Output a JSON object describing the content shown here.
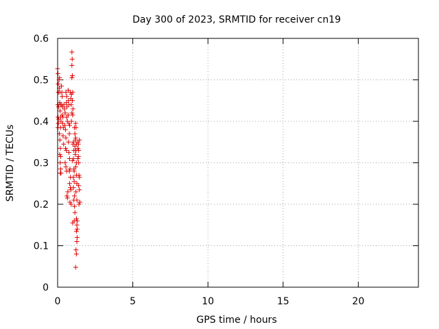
{
  "chart_data": {
    "type": "scatter",
    "title": "Day 300 of 2023, SRMTID for receiver cn19",
    "xlabel": "GPS time / hours",
    "ylabel": "SRMTID / TECUs",
    "xlim": [
      0,
      24
    ],
    "ylim": [
      0,
      0.6
    ],
    "xticks": [
      0,
      5,
      10,
      15,
      20
    ],
    "yticks": [
      0,
      0.1,
      0.2,
      0.3,
      0.4,
      0.5,
      0.6
    ],
    "xtick_labels": [
      "0",
      "5",
      "10",
      "15",
      "20"
    ],
    "ytick_labels": [
      "0",
      "0.1",
      "0.2",
      "0.3",
      "0.4",
      "0.5",
      "0.6"
    ],
    "grid": true,
    "marker": "+",
    "color": "#e00000",
    "series": [
      {
        "points": [
          [
            0.0,
            0.527
          ],
          [
            0.02,
            0.515
          ],
          [
            0.04,
            0.49
          ],
          [
            0.05,
            0.47
          ],
          [
            0.02,
            0.44
          ],
          [
            0.06,
            0.435
          ],
          [
            0.03,
            0.41
          ],
          [
            0.08,
            0.405
          ],
          [
            0.05,
            0.395
          ],
          [
            0.02,
            0.385
          ],
          [
            0.1,
            0.5
          ],
          [
            0.13,
            0.505
          ],
          [
            0.12,
            0.48
          ],
          [
            0.15,
            0.47
          ],
          [
            0.14,
            0.445
          ],
          [
            0.18,
            0.44
          ],
          [
            0.16,
            0.425
          ],
          [
            0.2,
            0.41
          ],
          [
            0.22,
            0.4
          ],
          [
            0.19,
            0.385
          ],
          [
            0.12,
            0.37
          ],
          [
            0.15,
            0.355
          ],
          [
            0.18,
            0.335
          ],
          [
            0.14,
            0.32
          ],
          [
            0.2,
            0.315
          ],
          [
            0.17,
            0.3
          ],
          [
            0.2,
            0.285
          ],
          [
            0.22,
            0.275
          ],
          [
            0.18,
            0.275
          ],
          [
            0.25,
            0.485
          ],
          [
            0.28,
            0.47
          ],
          [
            0.3,
            0.46
          ],
          [
            0.27,
            0.44
          ],
          [
            0.32,
            0.435
          ],
          [
            0.3,
            0.415
          ],
          [
            0.35,
            0.41
          ],
          [
            0.33,
            0.395
          ],
          [
            0.38,
            0.385
          ],
          [
            0.36,
            0.365
          ],
          [
            0.4,
            0.345
          ],
          [
            0.42,
            0.44
          ],
          [
            0.45,
            0.43
          ],
          [
            0.5,
            0.42
          ],
          [
            0.48,
            0.39
          ],
          [
            0.52,
            0.38
          ],
          [
            0.55,
            0.36
          ],
          [
            0.53,
            0.335
          ],
          [
            0.58,
            0.33
          ],
          [
            0.55,
            0.47
          ],
          [
            0.6,
            0.46
          ],
          [
            0.58,
            0.445
          ],
          [
            0.62,
            0.435
          ],
          [
            0.6,
            0.41
          ],
          [
            0.65,
            0.4
          ],
          [
            0.5,
            0.3
          ],
          [
            0.55,
            0.29
          ],
          [
            0.6,
            0.28
          ],
          [
            0.62,
            0.22
          ],
          [
            0.65,
            0.215
          ],
          [
            0.68,
            0.23
          ],
          [
            0.7,
            0.475
          ],
          [
            0.72,
            0.45
          ],
          [
            0.75,
            0.44
          ],
          [
            0.7,
            0.415
          ],
          [
            0.75,
            0.395
          ],
          [
            0.8,
            0.39
          ],
          [
            0.78,
            0.37
          ],
          [
            0.72,
            0.35
          ],
          [
            0.75,
            0.325
          ],
          [
            0.8,
            0.31
          ],
          [
            0.82,
            0.285
          ],
          [
            0.78,
            0.28
          ],
          [
            0.85,
            0.265
          ],
          [
            0.8,
            0.25
          ],
          [
            0.85,
            0.24
          ],
          [
            0.88,
            0.235
          ],
          [
            0.82,
            0.205
          ],
          [
            0.9,
            0.2
          ],
          [
            0.85,
            0.47
          ],
          [
            0.88,
            0.455
          ],
          [
            0.92,
            0.465
          ],
          [
            0.9,
            0.44
          ],
          [
            0.95,
            0.42
          ],
          [
            0.92,
            0.4
          ],
          [
            0.95,
            0.567
          ],
          [
            0.97,
            0.55
          ],
          [
            0.95,
            0.535
          ],
          [
            0.98,
            0.51
          ],
          [
            0.95,
            0.505
          ],
          [
            1.0,
            0.47
          ],
          [
            0.98,
            0.45
          ],
          [
            1.02,
            0.43
          ],
          [
            1.0,
            0.415
          ],
          [
            1.05,
            0.35
          ],
          [
            1.02,
            0.345
          ],
          [
            1.08,
            0.33
          ],
          [
            1.05,
            0.31
          ],
          [
            1.0,
            0.305
          ],
          [
            1.08,
            0.285
          ],
          [
            1.1,
            0.28
          ],
          [
            1.05,
            0.265
          ],
          [
            1.1,
            0.255
          ],
          [
            1.05,
            0.24
          ],
          [
            1.12,
            0.22
          ],
          [
            1.08,
            0.21
          ],
          [
            1.12,
            0.195
          ],
          [
            1.15,
            0.18
          ],
          [
            1.1,
            0.16
          ],
          [
            1.0,
            0.155
          ],
          [
            1.12,
            0.385
          ],
          [
            1.15,
            0.37
          ],
          [
            1.18,
            0.355
          ],
          [
            1.15,
            0.34
          ],
          [
            1.2,
            0.33
          ],
          [
            1.18,
            0.32
          ],
          [
            1.2,
            0.395
          ],
          [
            1.22,
            0.385
          ],
          [
            1.2,
            0.36
          ],
          [
            1.25,
            0.345
          ],
          [
            1.22,
            0.33
          ],
          [
            1.25,
            0.3
          ],
          [
            1.2,
            0.29
          ],
          [
            1.25,
            0.27
          ],
          [
            1.28,
            0.25
          ],
          [
            1.22,
            0.23
          ],
          [
            1.28,
            0.21
          ],
          [
            1.25,
            0.165
          ],
          [
            1.3,
            0.16
          ],
          [
            1.28,
            0.15
          ],
          [
            1.3,
            0.14
          ],
          [
            1.25,
            0.135
          ],
          [
            1.3,
            0.12
          ],
          [
            1.28,
            0.11
          ],
          [
            1.22,
            0.09
          ],
          [
            1.25,
            0.08
          ],
          [
            1.2,
            0.048
          ],
          [
            1.35,
            0.35
          ],
          [
            1.38,
            0.345
          ],
          [
            1.35,
            0.335
          ],
          [
            1.4,
            0.33
          ],
          [
            1.38,
            0.315
          ],
          [
            1.4,
            0.3
          ],
          [
            1.42,
            0.27
          ],
          [
            1.45,
            0.265
          ],
          [
            1.4,
            0.245
          ],
          [
            1.45,
            0.235
          ],
          [
            1.42,
            0.2
          ],
          [
            1.48,
            0.205
          ],
          [
            1.35,
            0.31
          ],
          [
            1.45,
            0.355
          ]
        ]
      }
    ]
  }
}
